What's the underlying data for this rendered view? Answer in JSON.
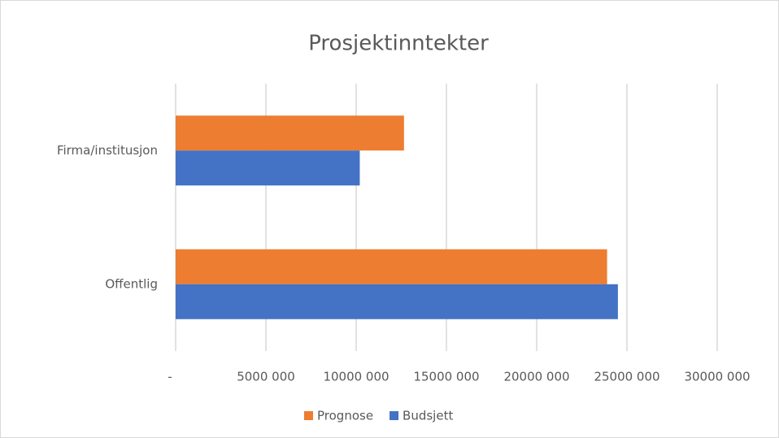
{
  "chart_data": {
    "type": "bar",
    "orientation": "horizontal",
    "title": "Prosjektinntekter",
    "categories": [
      "Offentlig",
      "Firma/institusjon"
    ],
    "series": [
      {
        "name": "Prognose",
        "color": "#ed7d31",
        "values": [
          23900000,
          12650000
        ]
      },
      {
        "name": "Budsjett",
        "color": "#4472c4",
        "values": [
          24500000,
          10200000
        ]
      }
    ],
    "xlim": [
      0,
      30000000
    ],
    "xticks": [
      {
        "value": 0,
        "label": "-"
      },
      {
        "value": 5000000,
        "label": "5000 000"
      },
      {
        "value": 10000000,
        "label": "10000 000"
      },
      {
        "value": 15000000,
        "label": "15000 000"
      },
      {
        "value": 20000000,
        "label": "20000 000"
      },
      {
        "value": 25000000,
        "label": "25000 000"
      },
      {
        "value": 30000000,
        "label": "30000 000"
      }
    ],
    "grid": true,
    "legend": "bottom"
  }
}
